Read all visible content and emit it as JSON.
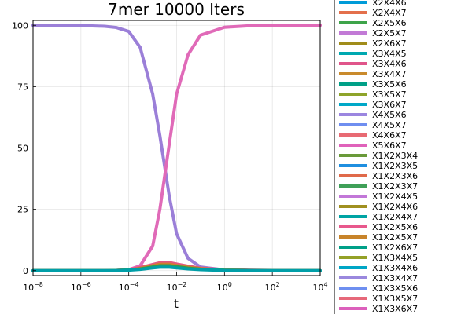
{
  "chart_data": {
    "type": "line",
    "title": "7mer 10000 Iters",
    "xlabel": "t",
    "ylabel": "",
    "xscale": "log10",
    "xlim": [
      1e-08,
      10000.0
    ],
    "ylim": [
      -2,
      102
    ],
    "xticks": [
      {
        "value": 1e-08,
        "base": "10",
        "exp": "−8"
      },
      {
        "value": 1e-06,
        "base": "10",
        "exp": "−6"
      },
      {
        "value": 0.0001,
        "base": "10",
        "exp": "−4"
      },
      {
        "value": 0.01,
        "base": "10",
        "exp": "−2"
      },
      {
        "value": 1,
        "base": "10",
        "exp": "0"
      },
      {
        "value": 100,
        "base": "10",
        "exp": "2"
      },
      {
        "value": 10000,
        "base": "10",
        "exp": "4"
      }
    ],
    "yticks": [
      {
        "value": 0,
        "label": "0"
      },
      {
        "value": 25,
        "label": "25"
      },
      {
        "value": 50,
        "label": "50"
      },
      {
        "value": 75,
        "label": "75"
      },
      {
        "value": 100,
        "label": "100"
      }
    ],
    "grid": true,
    "legend_position": "right (outside plot, clipped)",
    "x": [
      1e-08,
      1e-07,
      1e-06,
      1e-05,
      3e-05,
      0.0001,
      0.0003,
      0.001,
      0.002,
      0.005,
      0.01,
      0.03,
      0.1,
      1,
      10,
      100,
      1000,
      10000
    ],
    "series": [
      {
        "name": "",
        "color": "#9b7fd8",
        "values": [
          100,
          100,
          99.9,
          99.6,
          99.1,
          97.5,
          91,
          72,
          55,
          30,
          15,
          5,
          1.5,
          0.3,
          0.1,
          0,
          0,
          0
        ]
      },
      {
        "name": "",
        "color": "#e06ab8",
        "values": [
          0,
          0,
          0,
          0,
          0.1,
          0.4,
          2,
          10,
          25,
          52,
          72,
          88,
          96,
          99.2,
          99.8,
          100,
          100,
          100
        ]
      },
      {
        "name": "",
        "color": "#e3587f",
        "values": [
          0,
          0,
          0,
          0,
          0.1,
          0.4,
          1.2,
          2.5,
          3.2,
          3.3,
          2.7,
          1.8,
          1,
          0.4,
          0.2,
          0.1,
          0,
          0
        ]
      },
      {
        "name": "",
        "color": "#cf7f2e",
        "values": [
          0,
          0,
          0,
          0,
          0.1,
          0.3,
          0.9,
          2,
          2.6,
          2.6,
          2.1,
          1.4,
          0.8,
          0.3,
          0.1,
          0,
          0,
          0
        ]
      },
      {
        "name": "",
        "color": "#2e9e4f",
        "values": [
          0,
          0,
          0,
          0,
          0.1,
          0.3,
          0.7,
          1.5,
          2,
          2,
          1.6,
          1,
          0.6,
          0.2,
          0.1,
          0,
          0,
          0
        ]
      },
      {
        "name": "",
        "color": "#009fa8",
        "values": [
          0,
          0,
          0,
          0,
          0,
          0.2,
          0.5,
          1.1,
          1.4,
          1.4,
          1.1,
          0.7,
          0.4,
          0.1,
          0,
          0,
          0,
          0
        ]
      }
    ],
    "legend": [
      {
        "label": "X2X4X6",
        "color": "#009bd8"
      },
      {
        "label": "X2X4X7",
        "color": "#e3704c"
      },
      {
        "label": "X2X5X6",
        "color": "#3ea44a"
      },
      {
        "label": "X2X5X7",
        "color": "#c27ad6"
      },
      {
        "label": "X2X6X7",
        "color": "#a08c1a"
      },
      {
        "label": "X3X4X5",
        "color": "#00a8b0"
      },
      {
        "label": "X3X4X6",
        "color": "#e0558a"
      },
      {
        "label": "X3X4X7",
        "color": "#c98a2c"
      },
      {
        "label": "X3X5X6",
        "color": "#00a087"
      },
      {
        "label": "X3X5X7",
        "color": "#8ea42a"
      },
      {
        "label": "X3X6X7",
        "color": "#00a8c8"
      },
      {
        "label": "X4X5X6",
        "color": "#9b86e0"
      },
      {
        "label": "X4X5X7",
        "color": "#6f8ef0"
      },
      {
        "label": "X4X6X7",
        "color": "#e86a73"
      },
      {
        "label": "X5X6X7",
        "color": "#e062ba"
      },
      {
        "label": "X1X2X3X4",
        "color": "#6a9a3a"
      },
      {
        "label": "X1X2X3X5",
        "color": "#1f8fe0"
      },
      {
        "label": "X1X2X3X6",
        "color": "#e06a4a"
      },
      {
        "label": "X1X2X3X7",
        "color": "#3fa058"
      },
      {
        "label": "X1X2X4X5",
        "color": "#c277d8"
      },
      {
        "label": "X1X2X4X6",
        "color": "#a09020"
      },
      {
        "label": "X1X2X4X7",
        "color": "#00a4a4"
      },
      {
        "label": "X1X2X5X6",
        "color": "#e8588c"
      },
      {
        "label": "X1X2X5X7",
        "color": "#c8842a"
      },
      {
        "label": "X1X2X6X7",
        "color": "#00a088"
      },
      {
        "label": "X1X3X4X5",
        "color": "#94a128"
      },
      {
        "label": "X1X3X4X6",
        "color": "#00a6c6"
      },
      {
        "label": "X1X3X4X7",
        "color": "#9a88de"
      },
      {
        "label": "X1X3X5X6",
        "color": "#6e8ff0"
      },
      {
        "label": "X1X3X5X7",
        "color": "#e6687a"
      },
      {
        "label": "X1X3X6X7",
        "color": "#dc60bc"
      }
    ]
  }
}
